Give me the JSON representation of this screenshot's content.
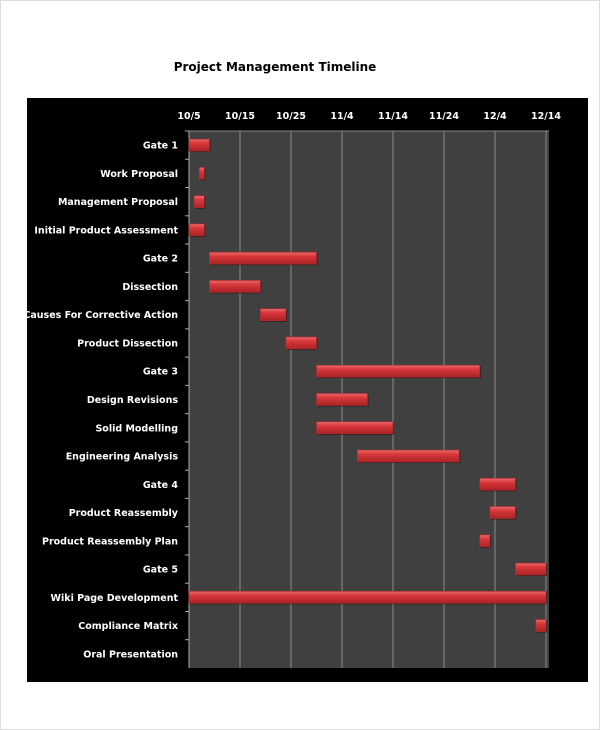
{
  "chart_data": {
    "type": "gantt",
    "title": "Project Management Timeline",
    "xlim": [
      "10/5",
      "12/14"
    ],
    "x_ticks": [
      "10/5",
      "10/15",
      "10/25",
      "11/4",
      "11/14",
      "11/24",
      "12/4",
      "12/14"
    ],
    "grid": true,
    "colors": {
      "background": "#000000",
      "plot": "#404040",
      "bar": "#d9373a",
      "grid": "#8a8a8a",
      "text": "#ffffff"
    },
    "tasks": [
      {
        "name": "Gate 1",
        "start": "10/5",
        "end": "10/9"
      },
      {
        "name": "Work Proposal",
        "start": "10/7",
        "end": "10/8"
      },
      {
        "name": "Management Proposal",
        "start": "10/6",
        "end": "10/8"
      },
      {
        "name": "Initial Product Assessment",
        "start": "10/5",
        "end": "10/8"
      },
      {
        "name": "Gate 2",
        "start": "10/9",
        "end": "10/30"
      },
      {
        "name": "Dissection",
        "start": "10/9",
        "end": "10/19"
      },
      {
        "name": "Causes For Corrective Action",
        "start": "10/19",
        "end": "10/24"
      },
      {
        "name": "Product Dissection",
        "start": "10/24",
        "end": "10/30"
      },
      {
        "name": "Gate 3",
        "start": "10/30",
        "end": "12/1"
      },
      {
        "name": "Design Revisions",
        "start": "10/30",
        "end": "11/9"
      },
      {
        "name": "Solid Modelling",
        "start": "10/30",
        "end": "11/14"
      },
      {
        "name": "Engineering Analysis",
        "start": "11/7",
        "end": "11/27"
      },
      {
        "name": "Gate 4",
        "start": "12/1",
        "end": "12/8"
      },
      {
        "name": "Product Reassembly",
        "start": "12/3",
        "end": "12/8"
      },
      {
        "name": "Product Reassembly Plan",
        "start": "12/1",
        "end": "12/3"
      },
      {
        "name": "Gate 5",
        "start": "12/8",
        "end": "12/14"
      },
      {
        "name": "Wiki Page Development",
        "start": "10/5",
        "end": "12/14"
      },
      {
        "name": "Compliance Matrix",
        "start": "12/12",
        "end": "12/14"
      },
      {
        "name": "Oral Presentation",
        "start": null,
        "end": null
      }
    ]
  }
}
